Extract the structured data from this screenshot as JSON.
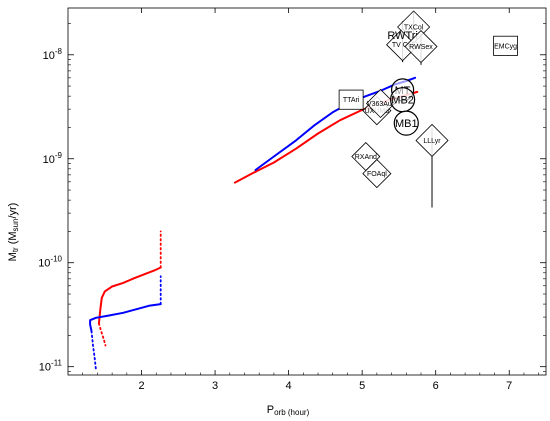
{
  "chart_data": {
    "type": "scatter",
    "title": "",
    "xlabel": "P",
    "xlabel_sub": "orb (hour)",
    "ylabel": "M",
    "ylabel_sub": "tr",
    "ylabel_rest": "(M",
    "ylabel_sub2": "sun",
    "ylabel_end": "/yr)",
    "xlim": [
      1.0,
      7.5
    ],
    "ylim_log10": [
      -11.08,
      -7.55
    ],
    "x_ticks": [
      2,
      3,
      4,
      5,
      6,
      7
    ],
    "y_ticks_major": [
      {
        "value": 1e-11,
        "base": "10",
        "exp": "-11"
      },
      {
        "value": 1e-10,
        "base": "10",
        "exp": "-10"
      },
      {
        "value": 1e-09,
        "base": "10",
        "exp": "-9"
      },
      {
        "value": 1e-08,
        "base": "10",
        "exp": "-8"
      }
    ],
    "y_scale": "log",
    "grid": false,
    "series": [
      {
        "color": "#ff0000",
        "style": "solid",
        "points": [
          [
            3.27,
            5.9e-10
          ],
          [
            3.5,
            7.2e-10
          ],
          [
            3.8,
            9.2e-10
          ],
          [
            4.1,
            1.25e-09
          ],
          [
            4.4,
            1.75e-09
          ],
          [
            4.7,
            2.35e-09
          ],
          [
            5.0,
            2.95e-09
          ],
          [
            5.2,
            3.35e-09
          ],
          [
            5.4,
            3.75e-09
          ],
          [
            5.6,
            4.1e-09
          ],
          [
            5.75,
            4.4e-09
          ]
        ]
      },
      {
        "color": "#0000ff",
        "style": "solid",
        "points": [
          [
            3.55,
            7.8e-10
          ],
          [
            3.8,
            1.05e-09
          ],
          [
            4.1,
            1.5e-09
          ],
          [
            4.35,
            2.1e-09
          ],
          [
            4.6,
            2.8e-09
          ],
          [
            4.85,
            3.5e-09
          ],
          [
            5.05,
            4e-09
          ],
          [
            5.25,
            4.5e-09
          ],
          [
            5.45,
            5.2e-09
          ],
          [
            5.6,
            5.6e-09
          ],
          [
            5.72,
            6e-09
          ]
        ]
      },
      {
        "color": "#ff0000",
        "style": "solid",
        "points": [
          [
            1.42,
            2.6e-11
          ],
          [
            1.44,
            3.6e-11
          ],
          [
            1.46,
            4.6e-11
          ],
          [
            1.5,
            5.3e-11
          ],
          [
            1.6,
            5.9e-11
          ],
          [
            1.75,
            6.4e-11
          ],
          [
            1.9,
            7.1e-11
          ],
          [
            2.05,
            7.8e-11
          ],
          [
            2.17,
            8.4e-11
          ],
          [
            2.26,
            9e-11
          ]
        ]
      },
      {
        "color": "#ff0000",
        "style": "dotted",
        "points": [
          [
            2.26,
            9e-11
          ],
          [
            2.26,
            1.25e-10
          ],
          [
            2.26,
            1.65e-10
          ],
          [
            2.26,
            2e-10
          ]
        ]
      },
      {
        "color": "#ff0000",
        "style": "dotted",
        "points": [
          [
            1.42,
            2.6e-11
          ],
          [
            1.45,
            2.2e-11
          ],
          [
            1.48,
            1.9e-11
          ],
          [
            1.51,
            1.6e-11
          ]
        ]
      },
      {
        "color": "#0000ff",
        "style": "solid",
        "points": [
          [
            1.32,
            2.2e-11
          ],
          [
            1.3,
            2.55e-11
          ],
          [
            1.3,
            2.8e-11
          ],
          [
            1.38,
            2.95e-11
          ],
          [
            1.55,
            3.1e-11
          ],
          [
            1.75,
            3.3e-11
          ],
          [
            1.95,
            3.6e-11
          ],
          [
            2.1,
            3.85e-11
          ],
          [
            2.26,
            4e-11
          ]
        ]
      },
      {
        "color": "#0000ff",
        "style": "dotted",
        "points": [
          [
            2.26,
            4e-11
          ],
          [
            2.26,
            5e-11
          ],
          [
            2.26,
            6.2e-11
          ],
          [
            2.26,
            7.4e-11
          ]
        ]
      },
      {
        "color": "#0000ff",
        "style": "dotted",
        "points": [
          [
            1.32,
            2.2e-11
          ],
          [
            1.34,
            1.6e-11
          ],
          [
            1.36,
            1.25e-11
          ],
          [
            1.38,
            9.5e-12
          ]
        ]
      }
    ],
    "systems": [
      {
        "name": "TTAri",
        "x": 4.85,
        "y": 3.7e-09,
        "marker": "square",
        "size": 12
      },
      {
        "name": "UXUMa",
        "x": 5.2,
        "y": 2.9e-09,
        "marker": "diamond",
        "size": 14
      },
      {
        "name": "TV Col",
        "x": 5.55,
        "y": 1.25e-08,
        "marker": "diamond",
        "size": 16,
        "errbar": [
          8.5e-09,
          2.1e-08
        ]
      },
      {
        "name": "TXCol",
        "x": 5.7,
        "y": 1.85e-08,
        "marker": "diamond",
        "size": 16,
        "errbar": [
          1.3e-08,
          2.6e-08
        ]
      },
      {
        "name": "RWTri",
        "x": 5.55,
        "y": 1.55e-08,
        "marker": "label",
        "size": 12
      },
      {
        "name": "RWSex",
        "x": 5.8,
        "y": 1.2e-08,
        "marker": "diamond",
        "size": 16,
        "errbar": [
          8e-09,
          1.6e-08
        ]
      },
      {
        "name": "V363Aur",
        "x": 5.25,
        "y": 3.4e-09,
        "marker": "diamond",
        "size": 14
      },
      {
        "name": "MT",
        "x": 5.55,
        "y": 4.6e-09,
        "marker": "circle",
        "size": 11
      },
      {
        "name": "MB2",
        "x": 5.55,
        "y": 3.7e-09,
        "marker": "circle",
        "size": 12
      },
      {
        "name": "MB1",
        "x": 5.6,
        "y": 2.2e-09,
        "marker": "circle",
        "size": 12
      },
      {
        "name": "RXAnd",
        "x": 5.05,
        "y": 1.05e-09,
        "marker": "diamond",
        "size": 14
      },
      {
        "name": "FOAql",
        "x": 5.2,
        "y": 7.2e-10,
        "marker": "diamond",
        "size": 14
      },
      {
        "name": "LLLyr",
        "x": 5.95,
        "y": 1.5e-09,
        "marker": "diamond",
        "size": 16,
        "errbar": [
          3.4e-10,
          2e-09
        ]
      },
      {
        "name": "EMCyg",
        "x": 6.95,
        "y": 1.22e-08,
        "marker": "square",
        "size": 12
      }
    ]
  }
}
